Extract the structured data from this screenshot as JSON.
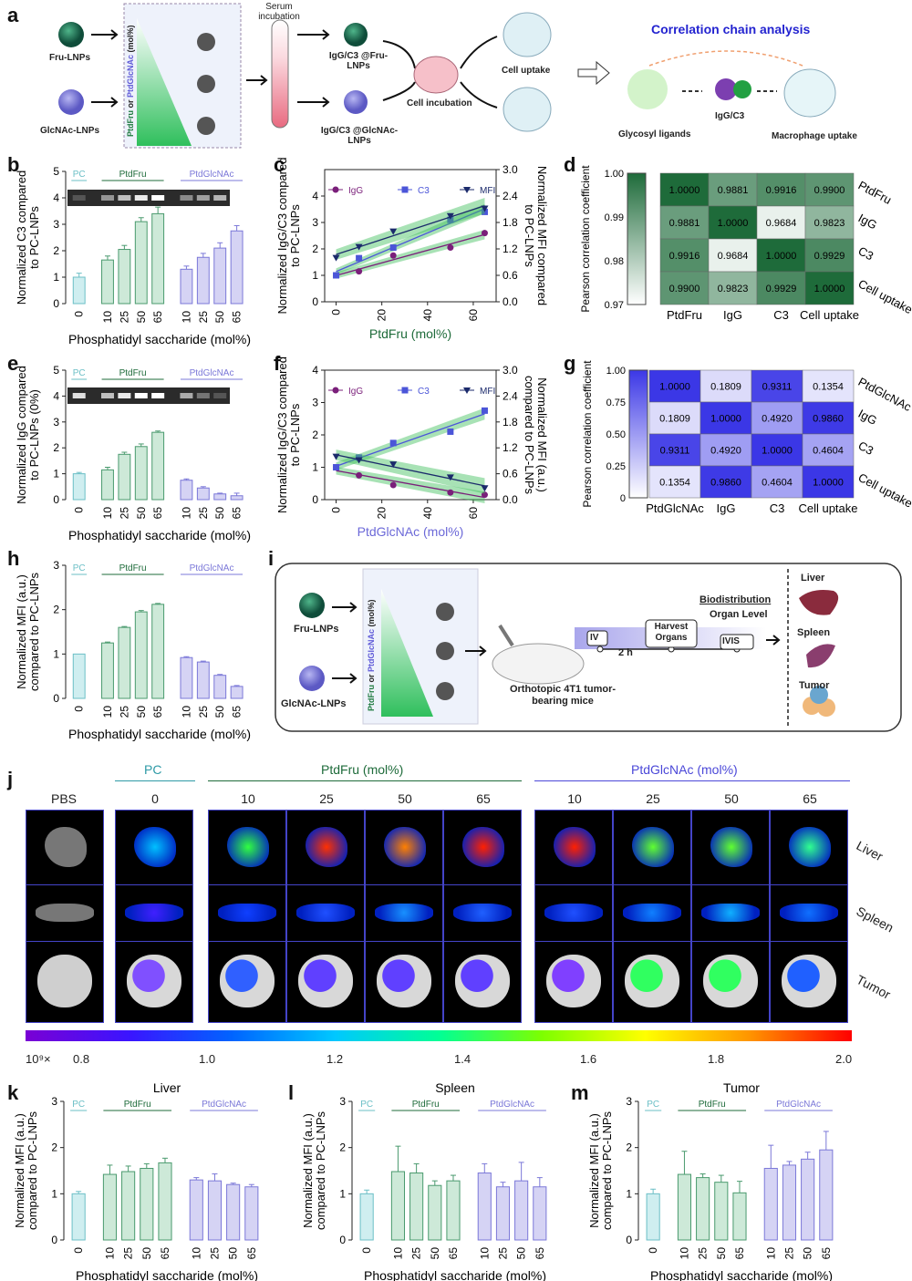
{
  "panels": {
    "a": "a",
    "b": "b",
    "c": "c",
    "d": "d",
    "e": "e",
    "f": "f",
    "g": "g",
    "h": "h",
    "i": "i",
    "j": "j",
    "k": "k",
    "l": "l",
    "m": "m"
  },
  "schematic_a": {
    "fru": "Fru-LNPs",
    "glcnac": "GlcNAc-LNPs",
    "gradient_label_1": "PtdFru",
    "gradient_label_or": "or",
    "gradient_label_2": "PtdGlcNAc",
    "gradient_label_unit": "(mol%)",
    "serum": "Serum incubation",
    "igg_fru": "IgG/C3 @Fru-LNPs",
    "igg_glc": "IgG/C3 @GlcNAc-LNPs",
    "cell_incubation": "Cell incubation",
    "cell_uptake": "Cell uptake",
    "corr_title": "Correlation chain analysis",
    "glycosyl": "Glycosyl ligands",
    "iggc3": "IgG/C3",
    "macrophage": "Macrophage uptake"
  },
  "bar_groups": {
    "pc": "PC",
    "fru": "PtdFru",
    "glc": "PtdGlcNAc"
  },
  "common_x_label": "Phosphatidyl saccharide (mol%)",
  "x_ticks": [
    "0",
    "10",
    "25",
    "50",
    "65",
    "10",
    "25",
    "50",
    "65"
  ],
  "colors": {
    "pc": "#cfeef0",
    "pc_stroke": "#6bbfc6",
    "fru": "#cde9d8",
    "fru_stroke": "#4a9a6e",
    "glc": "#d5d3f4",
    "glc_stroke": "#7b78d8",
    "heat_green": "#1e6b3a",
    "heat_blue": "#3b37e6",
    "igg": "#7a1f7a",
    "c3": "#4b55d8",
    "mfi": "#1b2a6b"
  },
  "chart_data": [
    {
      "id": "b",
      "type": "bar",
      "ylabel": "Normalized C3 compared to PC-LNPs",
      "ylim": [
        0,
        5
      ],
      "yticks": [
        0,
        1,
        2,
        3,
        4,
        5
      ],
      "values": [
        1.0,
        1.65,
        2.05,
        3.1,
        3.4,
        1.3,
        1.75,
        2.1,
        2.75
      ],
      "errors": [
        0.15,
        0.15,
        0.15,
        0.15,
        0.25,
        0.12,
        0.15,
        0.2,
        0.2
      ]
    },
    {
      "id": "e",
      "type": "bar",
      "ylabel": "Normalized IgG compared to PC-LNPs (0%)",
      "ylim": [
        0,
        5
      ],
      "yticks": [
        0,
        1,
        2,
        3,
        4,
        5
      ],
      "values": [
        1.0,
        1.15,
        1.75,
        2.05,
        2.6,
        0.75,
        0.45,
        0.22,
        0.15
      ],
      "errors": [
        0.05,
        0.1,
        0.08,
        0.1,
        0.05,
        0.05,
        0.05,
        0.03,
        0.1
      ]
    },
    {
      "id": "h",
      "type": "bar",
      "ylabel": "Normalized MFI (a.u.) compared to PC-LNPs",
      "ylim": [
        0,
        3
      ],
      "yticks": [
        0,
        1,
        2,
        3
      ],
      "values": [
        1.0,
        1.25,
        1.6,
        1.95,
        2.12,
        0.92,
        0.82,
        0.52,
        0.27
      ],
      "errors": [
        0,
        0.02,
        0.02,
        0.03,
        0.02,
        0.02,
        0.02,
        0.02,
        0.02
      ]
    },
    {
      "id": "c",
      "type": "scatter",
      "xlabel": "PtdFru (mol%)",
      "ylabel": "Normalized IgG/C3 compared to PC-LNPs",
      "ylabel2": "Normalized MFI compared to PC-LNPs",
      "xlim": [
        -5,
        70
      ],
      "xticks": [
        0,
        20,
        40,
        60
      ],
      "ylim": [
        0,
        5
      ],
      "yticks": [
        0,
        1,
        2,
        3,
        4
      ],
      "ylim2": [
        0,
        3
      ],
      "yticks2": [
        "0.0",
        "0.6",
        "1.2",
        "1.8",
        "2.4",
        "3.0"
      ],
      "x": [
        0,
        10,
        25,
        50,
        65
      ],
      "series": [
        {
          "name": "IgG",
          "values": [
            1.0,
            1.15,
            1.75,
            2.05,
            2.6
          ]
        },
        {
          "name": "C3",
          "values": [
            1.0,
            1.65,
            2.05,
            3.1,
            3.4
          ]
        },
        {
          "name": "MFI",
          "values": [
            1.0,
            1.25,
            1.6,
            1.95,
            2.12
          ]
        }
      ]
    },
    {
      "id": "f",
      "type": "scatter",
      "xlabel": "PtdGlcNAc (mol%)",
      "ylabel": "Normalized IgG/C3 compared to PC-LNPs",
      "ylabel2": "Normalized MFI (a.u.) compared to PC-LNPs",
      "xlim": [
        -5,
        70
      ],
      "xticks": [
        0,
        20,
        40,
        60
      ],
      "ylim": [
        0,
        4
      ],
      "yticks": [
        0,
        1,
        2,
        3,
        4
      ],
      "ylim2": [
        0,
        3
      ],
      "yticks2": [
        "0.0",
        "0.6",
        "1.2",
        "1.8",
        "2.4",
        "3.0"
      ],
      "x": [
        0,
        10,
        25,
        50,
        65
      ],
      "series": [
        {
          "name": "IgG",
          "values": [
            1.0,
            0.75,
            0.45,
            0.22,
            0.15
          ]
        },
        {
          "name": "C3",
          "values": [
            1.0,
            1.3,
            1.75,
            2.1,
            2.75
          ]
        },
        {
          "name": "MFI",
          "values": [
            1.0,
            0.92,
            0.82,
            0.52,
            0.27
          ]
        }
      ]
    },
    {
      "id": "d",
      "type": "heatmap",
      "cbar_label": "Pearson correlation coefficient",
      "cbar_ticks": [
        "1.00",
        "0.99",
        "0.98",
        "0.97"
      ],
      "cols": [
        "PtdFru",
        "IgG",
        "C3",
        "Cell uptake"
      ],
      "rows": [
        "PtdFru",
        "IgG",
        "C3",
        "Cell uptake"
      ],
      "values": [
        [
          "1.0000",
          "0.9881",
          "0.9916",
          "0.9900"
        ],
        [
          "0.9881",
          "1.0000",
          "0.9684",
          "0.9823"
        ],
        [
          "0.9916",
          "0.9684",
          "1.0000",
          "0.9929"
        ],
        [
          "0.9900",
          "0.9823",
          "0.9929",
          "1.0000"
        ]
      ]
    },
    {
      "id": "g",
      "type": "heatmap",
      "cbar_label": "Pearson correlation coefficient",
      "cbar_ticks": [
        "1.00",
        "0.75",
        "0.50",
        "0.25",
        "0"
      ],
      "cols": [
        "PtdGlcNAc",
        "IgG",
        "C3",
        "Cell uptake"
      ],
      "rows": [
        "PtdGlcNAc",
        "IgG",
        "C3",
        "Cell uptake"
      ],
      "values": [
        [
          "1.0000",
          "0.1809",
          "0.9311",
          "0.1354"
        ],
        [
          "0.1809",
          "1.0000",
          "0.4920",
          "0.9860"
        ],
        [
          "0.9311",
          "0.4920",
          "1.0000",
          "0.4604"
        ],
        [
          "0.1354",
          "0.9860",
          "0.4604",
          "1.0000"
        ]
      ]
    },
    {
      "id": "k",
      "type": "bar",
      "title": "Liver",
      "ylabel": "Normalized MFI (a.u.) compared to PC-LNPs",
      "ylim": [
        0,
        3
      ],
      "yticks": [
        0,
        1,
        2,
        3
      ],
      "values": [
        1.0,
        1.42,
        1.48,
        1.55,
        1.67,
        1.3,
        1.28,
        1.2,
        1.15
      ],
      "errors": [
        0.05,
        0.2,
        0.12,
        0.1,
        0.1,
        0.05,
        0.15,
        0.03,
        0.05
      ]
    },
    {
      "id": "l",
      "type": "bar",
      "title": "Spleen",
      "ylabel": "Normalized MFI (a.u.) compared to PC-LNPs",
      "ylim": [
        0,
        3
      ],
      "yticks": [
        0,
        1,
        2,
        3
      ],
      "values": [
        1.0,
        1.48,
        1.45,
        1.18,
        1.28,
        1.45,
        1.15,
        1.28,
        1.15
      ],
      "errors": [
        0.08,
        0.55,
        0.2,
        0.1,
        0.12,
        0.2,
        0.1,
        0.4,
        0.2
      ]
    },
    {
      "id": "m",
      "type": "bar",
      "title": "Tumor",
      "ylabel": "Normalized MFI (a.u.) compared to PC-LNPs",
      "ylim": [
        0,
        3
      ],
      "yticks": [
        0,
        1,
        2,
        3
      ],
      "values": [
        1.0,
        1.42,
        1.35,
        1.25,
        1.02,
        1.55,
        1.62,
        1.75,
        1.95
      ],
      "errors": [
        0.1,
        0.5,
        0.08,
        0.15,
        0.25,
        0.5,
        0.08,
        0.15,
        0.4
      ]
    }
  ],
  "schematic_i": {
    "fru": "Fru-LNPs",
    "glcnac": "GlcNAc-LNPs",
    "grad1": "PtdFru",
    "grad_or": "or",
    "grad2": "PtdGlcNAc",
    "grad_unit": "(mol%)",
    "mice": "Orthotopic 4T1 tumor-bearing mice",
    "iv": "IV",
    "time": "2 h",
    "harvest": "Harvest Organs",
    "ivis": "IVIS",
    "biodist": "Biodistribution",
    "organ_level": "Organ Level",
    "liver": "Liver",
    "spleen": "Spleen",
    "tumor": "Tumor"
  },
  "imaging_j": {
    "pbs": "PBS",
    "pc": "PC",
    "fru_header": "PtdFru (mol%)",
    "glc_header": "PtdGlcNAc (mol%)",
    "cols": [
      "0",
      "10",
      "25",
      "50",
      "65",
      "10",
      "25",
      "50",
      "65"
    ],
    "rows": [
      "Liver",
      "Spleen",
      "Tumor"
    ],
    "scale_prefix": "10⁹×",
    "scale": [
      "0.8",
      "1.0",
      "1.2",
      "1.4",
      "1.6",
      "1.8",
      "2.0"
    ]
  }
}
